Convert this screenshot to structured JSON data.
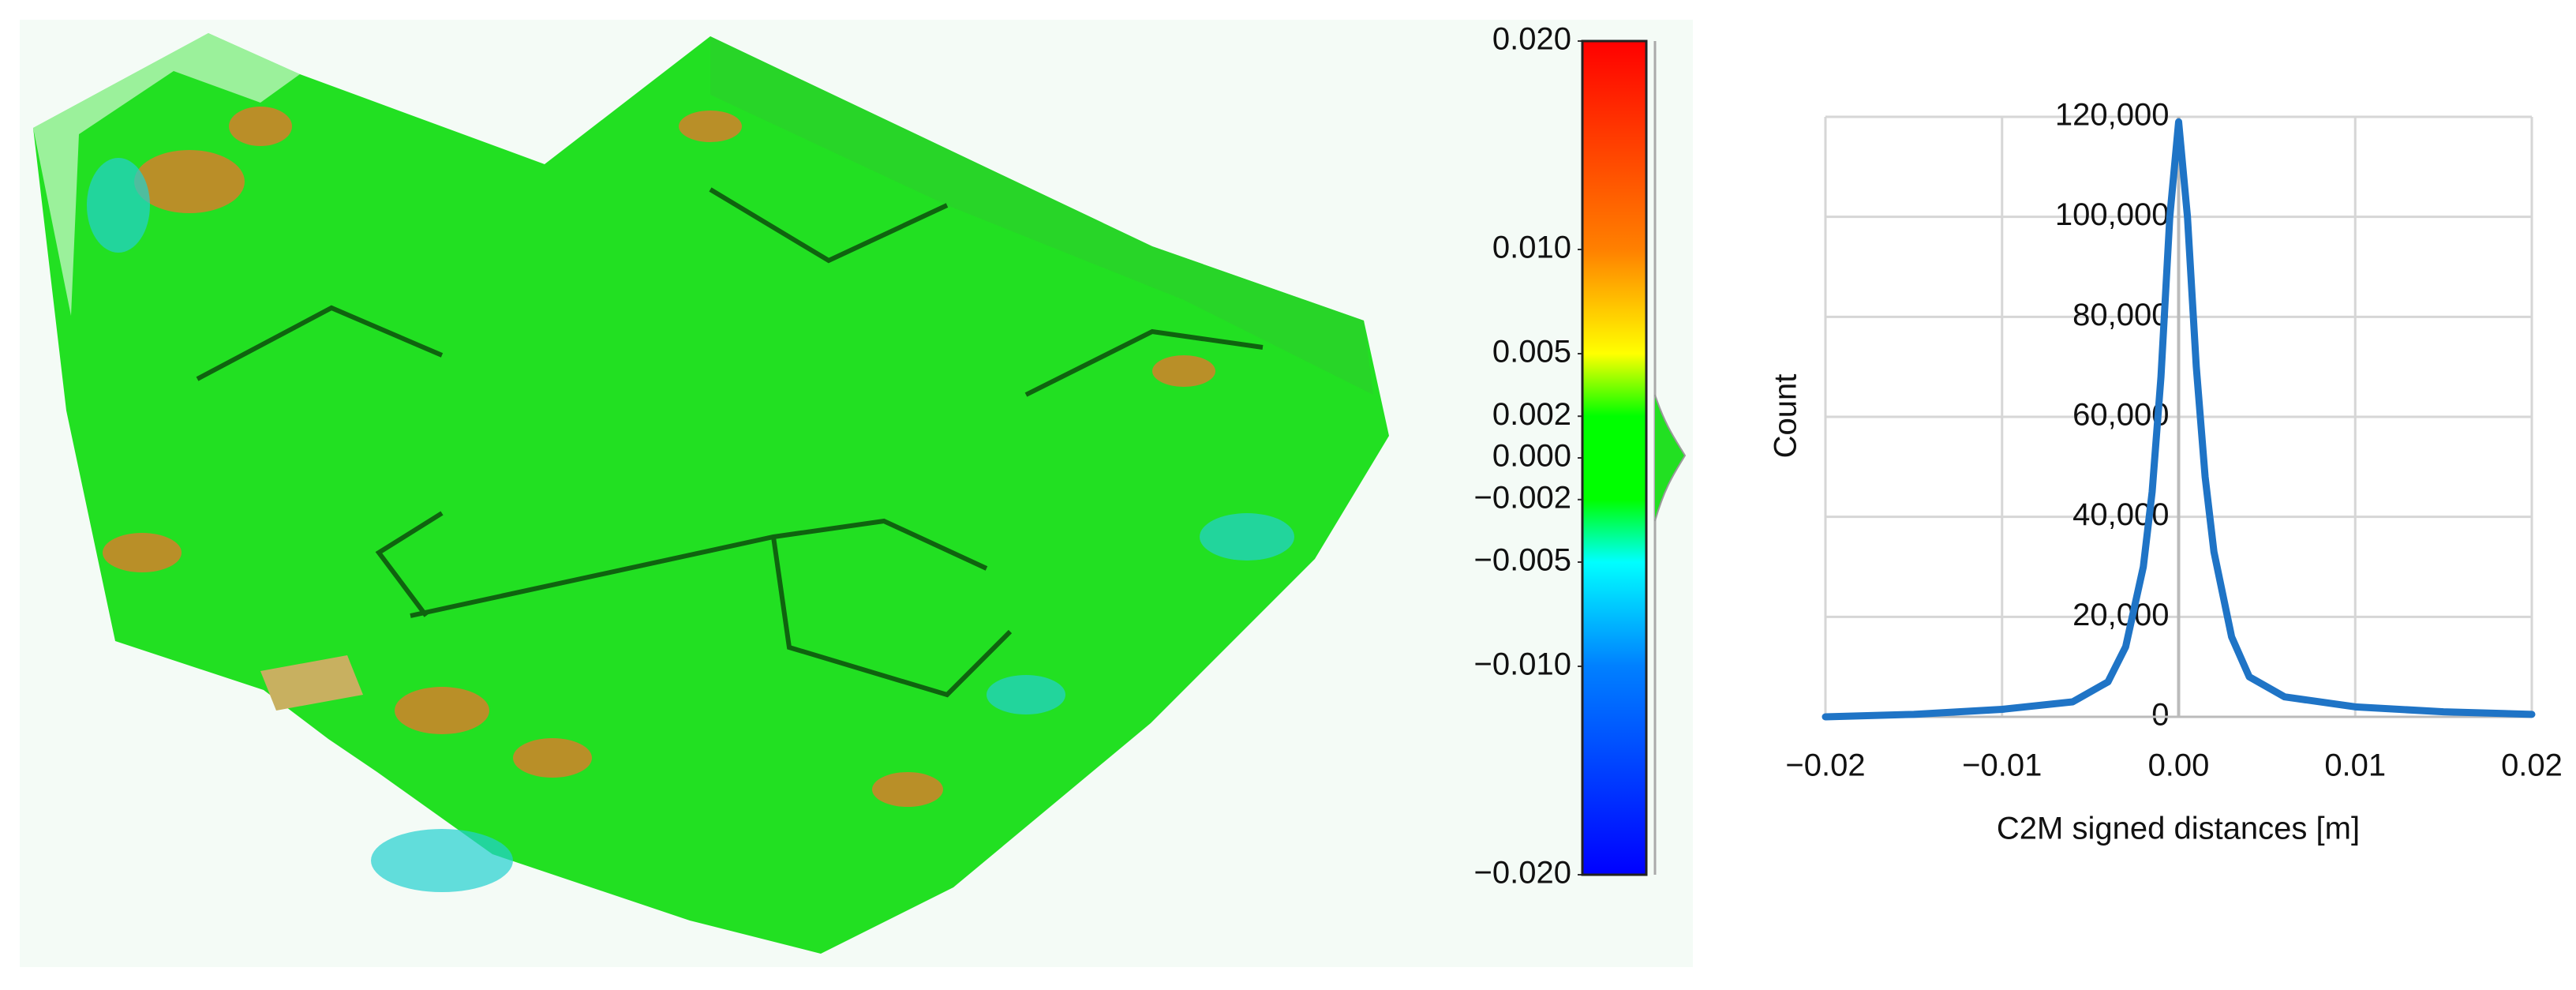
{
  "chart_data": [
    {
      "type": "colorbar",
      "ylim": [
        -0.02,
        0.02
      ],
      "yticks": [
        {
          "value": 0.02,
          "label": "0.020"
        },
        {
          "value": 0.01,
          "label": "0.010"
        },
        {
          "value": 0.005,
          "label": "0.005"
        },
        {
          "value": 0.002,
          "label": "0.002"
        },
        {
          "value": 0,
          "label": "0.000"
        },
        {
          "value": -0.002,
          "label": "−0.002"
        },
        {
          "value": -0.005,
          "label": "−0.005"
        },
        {
          "value": -0.01,
          "label": "−0.010"
        },
        {
          "value": -0.02,
          "label": "−0.020"
        }
      ],
      "colors": [
        "#ff0000",
        "#ff8000",
        "#ffff00",
        "#00ff00",
        "#00ff00",
        "#00ff00",
        "#00ffff",
        "#0080ff",
        "#0000ff"
      ]
    },
    {
      "type": "line",
      "x_label": "C2M signed distances [m]",
      "y_label": "Count",
      "x": [
        -0.02,
        -0.015,
        -0.01,
        -0.006,
        -0.004,
        -0.003,
        -0.002,
        -0.0015,
        -0.001,
        -0.0005,
        0,
        0.0005,
        0.001,
        0.0015,
        0.002,
        0.003,
        0.004,
        0.006,
        0.01,
        0.015,
        0.02
      ],
      "series": [
        {
          "color": "#1f74c6",
          "values": [
            0,
            500,
            1500,
            3000,
            7000,
            14000,
            30000,
            45000,
            68000,
            100000,
            119000,
            100000,
            70000,
            48000,
            33000,
            16000,
            8000,
            4000,
            2000,
            1000,
            500
          ]
        }
      ],
      "xlim": [
        -0.02,
        0.02
      ],
      "xticks": [
        {
          "value": -0.02,
          "label": "−0.02"
        },
        {
          "value": -0.01,
          "label": "−0.01"
        },
        {
          "value": 0,
          "label": "0.00"
        },
        {
          "value": 0.01,
          "label": "0.01"
        },
        {
          "value": 0.02,
          "label": "0.02"
        }
      ],
      "ylim": [
        0,
        120000
      ],
      "yticks": [
        0,
        {
          "value": 20000,
          "label": "20,000"
        },
        {
          "value": 40000,
          "label": "40,000"
        },
        {
          "value": 60000,
          "label": "60,000"
        },
        {
          "value": 80000,
          "label": "80,000"
        },
        {
          "value": 100000,
          "label": "100,000"
        },
        {
          "value": 120000,
          "label": "120,000"
        }
      ],
      "grid": true
    }
  ]
}
